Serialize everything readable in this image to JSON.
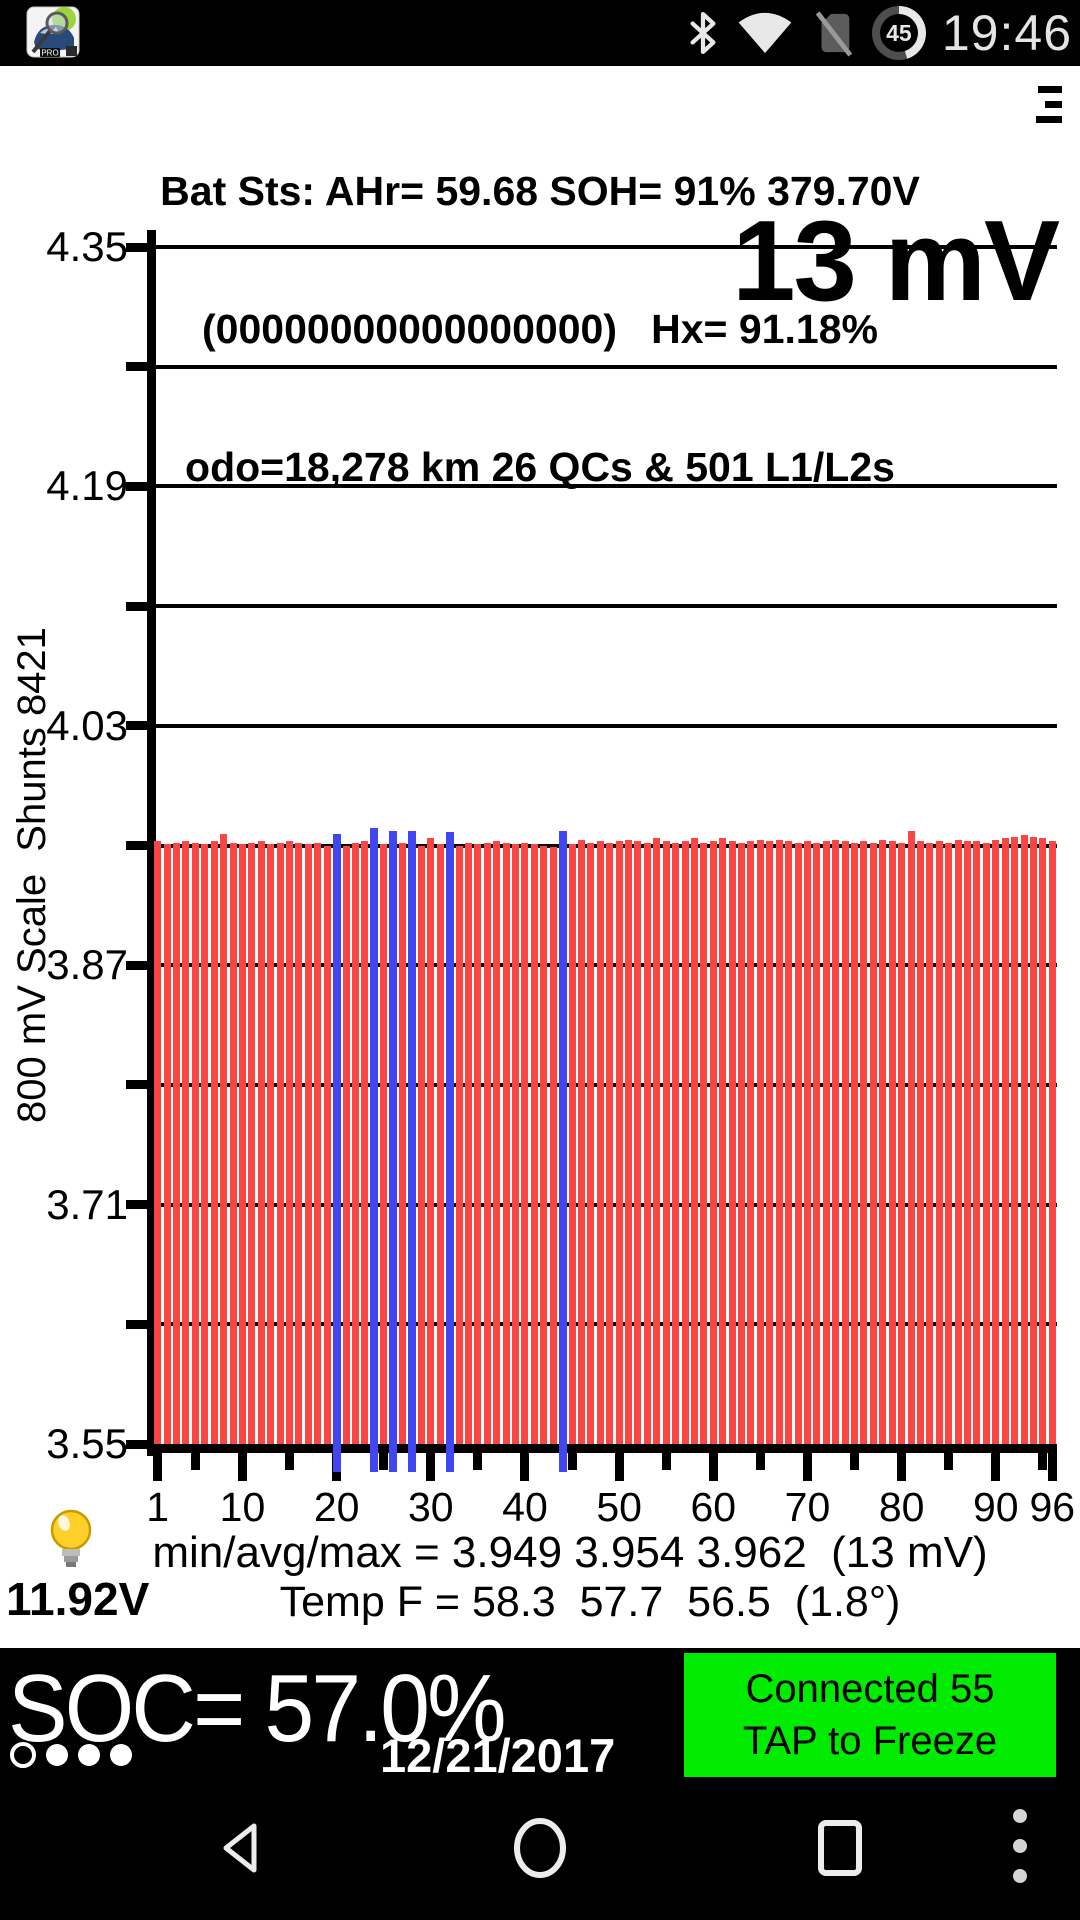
{
  "status_bar": {
    "time": "19:46",
    "battery_percent": "45",
    "icons": [
      "leafspy-app-icon",
      "bluetooth-icon",
      "wifi-icon",
      "no-sim-icon",
      "battery-circle-icon"
    ]
  },
  "header": {
    "line1": "Bat Sts: AHr= 59.68 SOH= 91% 379.70V",
    "line2": "(00000000000000000)   Hx= 91.18%",
    "line3": "odo=18,278 km 26 QCs & 501 L1/L2s",
    "menu_icon": "hamburger"
  },
  "chart_data": {
    "type": "bar",
    "annotation": "13 mV",
    "ylabel": "800 mV Scale  Shunts 8421",
    "ylim": [
      3.55,
      4.35
    ],
    "gridline_step": 0.08,
    "ytick_labels": [
      "4.35",
      "4.19",
      "4.03",
      "3.87",
      "3.71",
      "3.55"
    ],
    "xtick_labels": [
      1,
      10,
      20,
      30,
      40,
      50,
      60,
      70,
      80,
      90,
      96
    ],
    "cells": 96,
    "values": [
      3.953,
      3.951,
      3.952,
      3.953,
      3.952,
      3.951,
      3.953,
      3.958,
      3.952,
      3.951,
      3.952,
      3.953,
      3.951,
      3.952,
      3.953,
      3.952,
      3.951,
      3.952,
      3.95,
      3.958,
      3.95,
      3.952,
      3.953,
      3.962,
      3.951,
      3.96,
      3.952,
      3.96,
      3.95,
      3.955,
      3.951,
      3.959,
      3.95,
      3.952,
      3.951,
      3.952,
      3.953,
      3.952,
      3.951,
      3.952,
      3.951,
      3.95,
      3.949,
      3.96,
      3.951,
      3.954,
      3.952,
      3.953,
      3.952,
      3.953,
      3.954,
      3.953,
      3.952,
      3.955,
      3.953,
      3.952,
      3.953,
      3.955,
      3.952,
      3.953,
      3.955,
      3.953,
      3.952,
      3.953,
      3.954,
      3.953,
      3.954,
      3.953,
      3.952,
      3.953,
      3.952,
      3.953,
      3.954,
      3.953,
      3.952,
      3.953,
      3.952,
      3.954,
      3.953,
      3.952,
      3.96,
      3.953,
      3.952,
      3.953,
      3.952,
      3.954,
      3.953,
      3.953,
      3.952,
      3.954,
      3.955,
      3.956,
      3.957,
      3.956,
      3.955,
      3.953
    ],
    "shunt_cells": [
      20,
      24,
      26,
      28,
      32,
      44
    ],
    "bar_color": "#fa4642",
    "shunt_color": "#4246f0",
    "stats": {
      "min": "3.949",
      "avg": "3.954",
      "max": "3.962",
      "delta_mv": "13"
    },
    "legend_position": "none",
    "grid": "on"
  },
  "footer": {
    "min_avg_max": "min/avg/max = 3.949 3.954 3.962  (13 mV)",
    "temp": "Temp F = 58.3  57.7  56.5  (1.8°)",
    "aux_voltage": "11.92V",
    "bulb_icon": "lightbulb"
  },
  "soc_bar": {
    "soc": "SOC= 57.0%",
    "date": "12/21/2017",
    "log_indicator": "O•••",
    "connect_line1": "Connected 55",
    "connect_line2": "TAP to Freeze",
    "connect_bg": "#00eb00"
  },
  "navbar": {
    "icons": [
      "back-icon",
      "home-icon",
      "recents-icon",
      "overflow-menu-icon"
    ]
  }
}
